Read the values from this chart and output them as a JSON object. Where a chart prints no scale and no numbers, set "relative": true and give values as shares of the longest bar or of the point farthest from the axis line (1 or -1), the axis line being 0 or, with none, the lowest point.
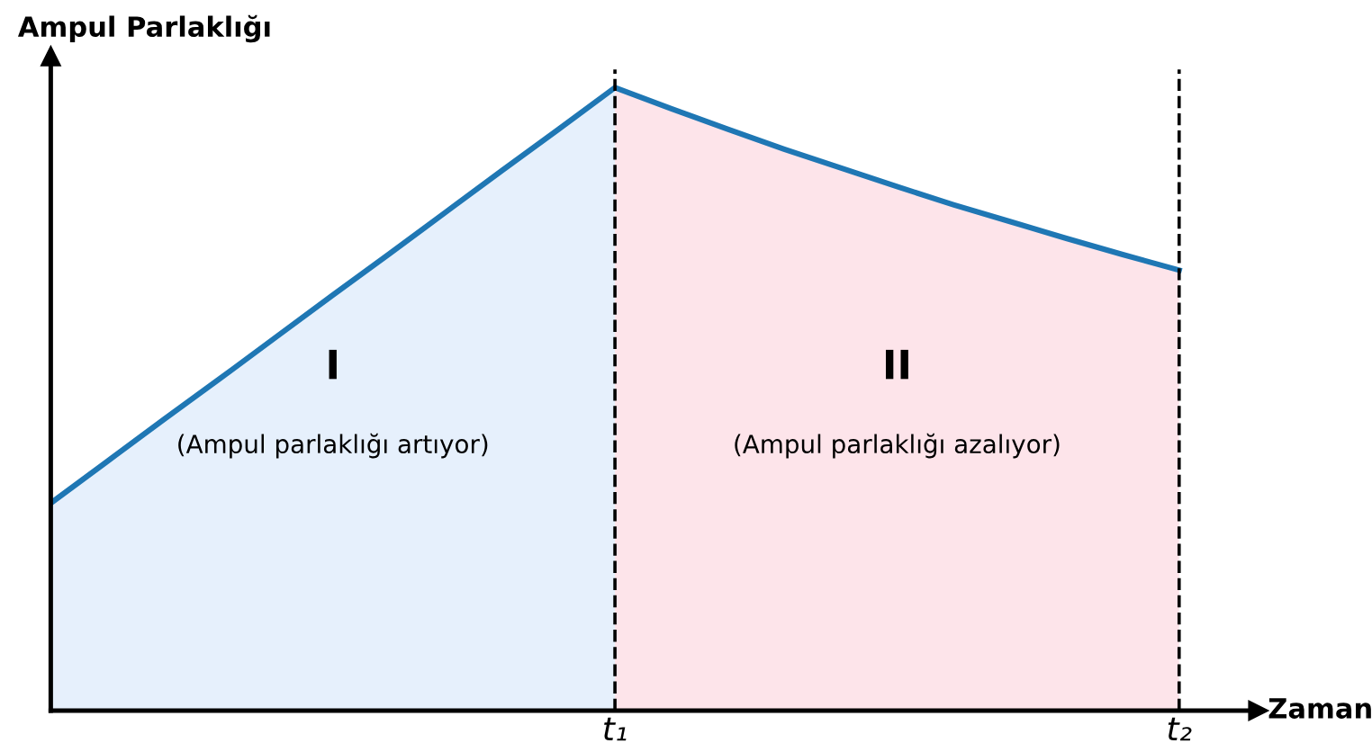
{
  "chart_data": {
    "type": "line",
    "relative": true,
    "xlabel": "Zaman",
    "ylabel": "Ampul Parlaklığı",
    "categories": [
      null,
      null,
      null,
      null,
      null,
      null,
      null,
      null,
      null,
      null,
      "t₁",
      null,
      null,
      null,
      null,
      null,
      null,
      null,
      null,
      null,
      "t₂"
    ],
    "grid": false,
    "legend": false,
    "marker": "none",
    "line_style": "solid",
    "series": [
      {
        "type": "area",
        "color": "#e6f0fc",
        "values": [
          0.333,
          0.4,
          0.467,
          0.533,
          0.6,
          0.667,
          0.733,
          0.8,
          0.867,
          0.933,
          1.0,
          null,
          null,
          null,
          null,
          null,
          null,
          null,
          null,
          null,
          null
        ]
      },
      {
        "type": "area",
        "color": "#fde4ea",
        "values": [
          null,
          null,
          null,
          null,
          null,
          null,
          null,
          null,
          null,
          null,
          1.0,
          0.966,
          0.933,
          0.901,
          0.871,
          0.841,
          0.812,
          0.785,
          0.758,
          0.732,
          0.707
        ]
      },
      {
        "color": "#1f77b4",
        "values": [
          0.333,
          0.4,
          0.467,
          0.533,
          0.6,
          0.667,
          0.733,
          0.8,
          0.867,
          0.933,
          1.0,
          0.966,
          0.933,
          0.901,
          0.871,
          0.841,
          0.812,
          0.785,
          0.758,
          0.732,
          0.707
        ]
      }
    ],
    "ref_lines": [
      {
        "axis": "x",
        "value": "t₁",
        "color": "#000000",
        "line_style": "dashed"
      },
      {
        "axis": "x",
        "value": "t₂",
        "color": "#000000",
        "line_style": "dashed"
      }
    ],
    "annotations": [
      "I",
      "(Ampul parlaklığı artıyor)",
      "II",
      "(Ampul parlaklığı azalıyor)"
    ]
  }
}
